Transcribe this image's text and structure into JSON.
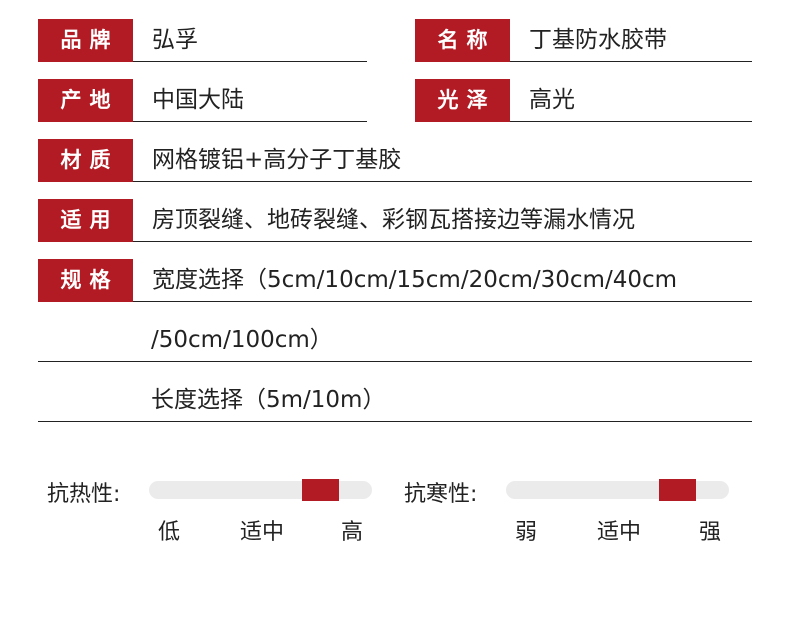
{
  "specs": [
    {
      "label": "品牌",
      "value": "弘孚"
    },
    {
      "label": "名称",
      "value": "丁基防水胶带"
    },
    {
      "label": "产地",
      "value": "中国大陆"
    },
    {
      "label": "光泽",
      "value": "高光"
    },
    {
      "label": "材质",
      "value": "网格镀铝+高分子丁基胶"
    },
    {
      "label": "适用",
      "value": "房顶裂缝、地砖裂缝、彩钢瓦搭接边等漏水情况"
    },
    {
      "label": "规格",
      "value": "宽度选择（5cm/10cm/15cm/20cm/30cm/40cm"
    }
  ],
  "spec_continued": [
    "/50cm/100cm）",
    "长度选择（5m/10m）"
  ],
  "gauges": [
    {
      "title": "抗热性:",
      "level": 0.82,
      "ticks": [
        "低",
        "适中",
        "高"
      ]
    },
    {
      "title": "抗寒性:",
      "level": 0.82,
      "ticks": [
        "弱",
        "适中",
        "强"
      ]
    }
  ],
  "colors": {
    "accent": "#b31b24",
    "track": "#ebebeb"
  }
}
